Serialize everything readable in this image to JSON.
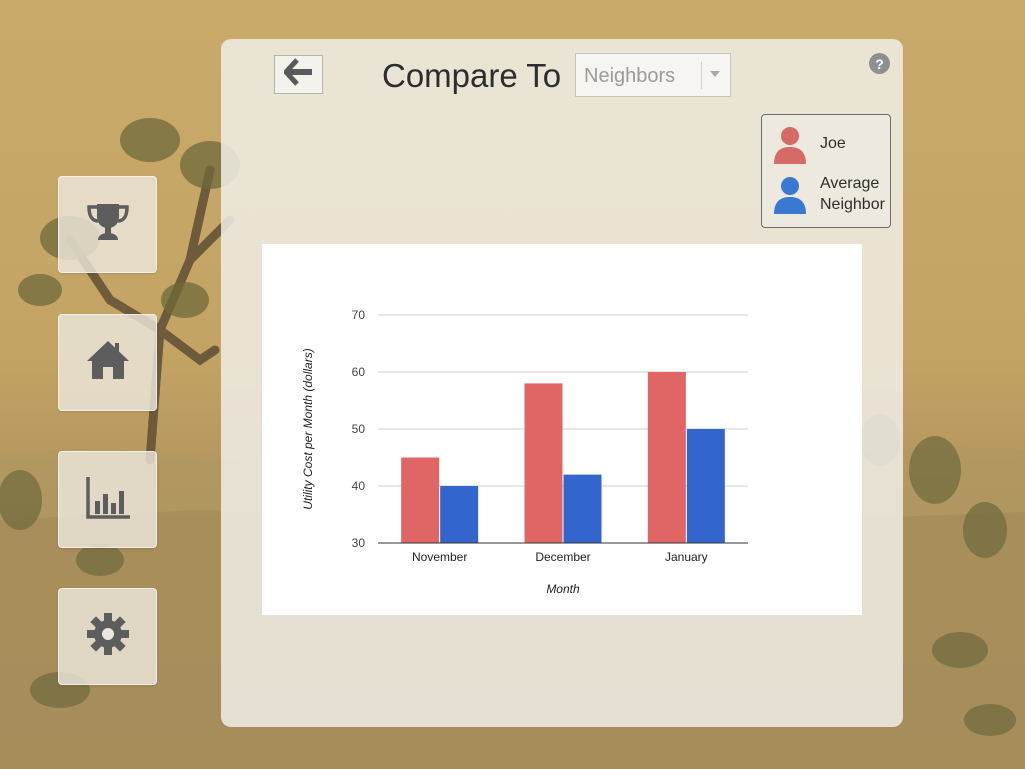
{
  "nav": {
    "items": [
      {
        "name": "trophy-nav-button",
        "icon": "trophy-icon"
      },
      {
        "name": "home-nav-button",
        "icon": "house-icon"
      },
      {
        "name": "stats-nav-button",
        "icon": "bar-chart-icon"
      },
      {
        "name": "settings-nav-button",
        "icon": "gear-icon"
      }
    ]
  },
  "header": {
    "back_icon": "arrow-left-icon",
    "compare_label": "Compare To",
    "compare_select_value": "Neighbors",
    "help_label": "?"
  },
  "legend": {
    "items": [
      {
        "label": "Joe",
        "color": "#e06666",
        "icon": "person-icon"
      },
      {
        "label_line1": "Average",
        "label_line2": "Neighbor",
        "color": "#3366cc",
        "icon": "person-icon"
      }
    ]
  },
  "colors": {
    "joe": "#e06666",
    "neighbor": "#3366cc"
  },
  "chart_data": {
    "type": "bar",
    "categories": [
      "November",
      "December",
      "January"
    ],
    "series": [
      {
        "name": "Joe",
        "values": [
          45,
          58,
          60
        ],
        "color": "#e06666"
      },
      {
        "name": "Average Neighbor",
        "values": [
          40,
          42,
          50
        ],
        "color": "#3366cc"
      }
    ],
    "xlabel": "Month",
    "ylabel": "Utility Cost per Month (dollars)",
    "ylim": [
      30,
      70
    ],
    "yticks": [
      30,
      40,
      50,
      60,
      70
    ],
    "grid": true,
    "legend": "top-right"
  }
}
